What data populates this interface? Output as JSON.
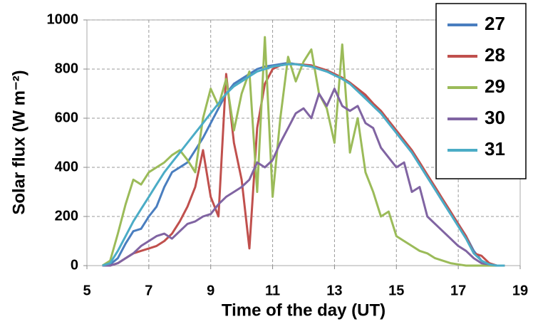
{
  "chart_data": {
    "type": "line",
    "xlabel": "Time of the day (UT)",
    "ylabel": "Solar flux (W m⁻²)",
    "x": [
      5.5,
      5.75,
      6,
      6.25,
      6.5,
      6.75,
      7,
      7.25,
      7.5,
      7.75,
      8,
      8.25,
      8.5,
      8.75,
      9,
      9.25,
      9.5,
      9.75,
      10,
      10.25,
      10.5,
      10.75,
      11,
      11.25,
      11.5,
      11.75,
      12,
      12.25,
      12.5,
      12.75,
      13,
      13.25,
      13.5,
      13.75,
      14,
      14.25,
      14.5,
      14.75,
      15,
      15.25,
      15.5,
      15.75,
      16,
      16.25,
      16.5,
      16.75,
      17,
      17.25,
      17.5,
      17.75,
      18,
      18.25,
      18.5
    ],
    "series": [
      {
        "name": "27",
        "color": "#4a7ebf",
        "values": [
          0,
          5,
          30,
          90,
          140,
          150,
          200,
          240,
          320,
          380,
          400,
          420,
          470,
          520,
          580,
          640,
          700,
          740,
          760,
          780,
          800,
          810,
          815,
          820,
          825,
          820,
          815,
          810,
          800,
          790,
          780,
          760,
          740,
          715,
          690,
          650,
          620,
          580,
          540,
          500,
          460,
          410,
          360,
          310,
          260,
          210,
          170,
          120,
          60,
          20,
          5,
          0,
          0
        ]
      },
      {
        "name": "28",
        "color": "#c0504d",
        "values": [
          0,
          0,
          10,
          30,
          50,
          60,
          70,
          80,
          100,
          130,
          180,
          240,
          320,
          470,
          280,
          200,
          780,
          500,
          350,
          70,
          560,
          740,
          800,
          815,
          820,
          820,
          818,
          815,
          805,
          795,
          780,
          765,
          745,
          720,
          695,
          660,
          630,
          590,
          550,
          510,
          470,
          420,
          370,
          320,
          270,
          220,
          170,
          120,
          50,
          40,
          10,
          0,
          0
        ]
      },
      {
        "name": "29",
        "color": "#9bbb59",
        "values": [
          0,
          20,
          130,
          250,
          350,
          330,
          380,
          400,
          420,
          450,
          470,
          430,
          380,
          600,
          720,
          650,
          760,
          550,
          700,
          790,
          300,
          930,
          280,
          600,
          850,
          750,
          830,
          880,
          700,
          640,
          500,
          900,
          460,
          600,
          380,
          300,
          200,
          220,
          120,
          100,
          80,
          60,
          50,
          30,
          20,
          10,
          5,
          0,
          0,
          0,
          0,
          0,
          0
        ]
      },
      {
        "name": "30",
        "color": "#8064a2",
        "values": [
          0,
          0,
          10,
          30,
          50,
          80,
          100,
          120,
          130,
          110,
          140,
          170,
          180,
          200,
          210,
          250,
          280,
          300,
          320,
          350,
          420,
          400,
          430,
          500,
          560,
          620,
          640,
          600,
          700,
          650,
          720,
          650,
          630,
          650,
          580,
          560,
          480,
          440,
          400,
          420,
          300,
          320,
          200,
          170,
          140,
          110,
          80,
          60,
          30,
          10,
          5,
          0,
          0
        ]
      },
      {
        "name": "31",
        "color": "#4bacc6",
        "values": [
          0,
          10,
          60,
          120,
          180,
          230,
          280,
          330,
          380,
          420,
          460,
          500,
          540,
          580,
          620,
          660,
          700,
          730,
          750,
          770,
          790,
          800,
          810,
          815,
          820,
          820,
          815,
          810,
          800,
          790,
          775,
          760,
          740,
          710,
          680,
          650,
          620,
          580,
          540,
          500,
          460,
          410,
          360,
          310,
          260,
          210,
          160,
          110,
          50,
          20,
          5,
          0,
          0
        ]
      }
    ],
    "xlim": [
      5,
      19
    ],
    "xticks": [
      5,
      7,
      9,
      11,
      13,
      15,
      17,
      19
    ],
    "ylim": [
      0,
      1000
    ],
    "yticks": [
      0,
      200,
      400,
      600,
      800,
      1000
    ],
    "grid": true,
    "legend": "top-right"
  }
}
